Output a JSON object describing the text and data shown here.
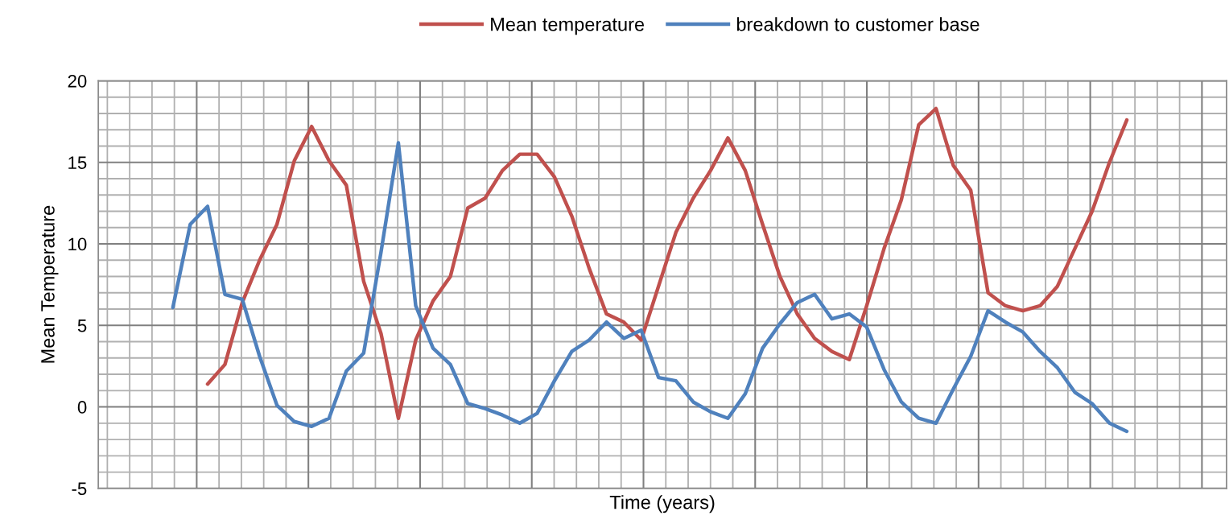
{
  "chart_data": {
    "type": "line",
    "xlabel": "Time (years)",
    "ylabel": "Mean Temperature",
    "categories": [
      null,
      null,
      null,
      null,
      null,
      null,
      null,
      null,
      null,
      null,
      null,
      null,
      null,
      null,
      null,
      null,
      null,
      null,
      null,
      null,
      null,
      null,
      null,
      null,
      null,
      null,
      null,
      null,
      null,
      null,
      null,
      null,
      null,
      null,
      null,
      null,
      null,
      null,
      null,
      null,
      null,
      null,
      null,
      null,
      null,
      null,
      null,
      null,
      null,
      null,
      null,
      null,
      null,
      null,
      null,
      null
    ],
    "series": [
      {
        "name": "Mean temperature",
        "color": "#c0504d",
        "values": [
          null,
          null,
          1.4,
          2.6,
          6.4,
          9.0,
          11.2,
          15.1,
          17.2,
          15.1,
          13.6,
          7.7,
          4.5,
          -0.7,
          4.1,
          6.5,
          8.0,
          12.2,
          12.8,
          14.5,
          15.5,
          15.5,
          14.1,
          11.7,
          8.5,
          5.7,
          5.2,
          4.1,
          7.4,
          10.7,
          12.8,
          14.5,
          16.5,
          14.5,
          11.2,
          8.0,
          5.7,
          4.2,
          3.4,
          2.9,
          6.2,
          9.7,
          12.7,
          17.3,
          18.3,
          14.8,
          13.3,
          7.0,
          6.2,
          5.9,
          6.2,
          7.4,
          9.7,
          12.0,
          15.0,
          17.6
        ]
      },
      {
        "name": "breakdown to customer base",
        "color": "#4f81bd",
        "values": [
          6.1,
          11.2,
          12.3,
          6.9,
          6.6,
          3.1,
          0.1,
          -0.9,
          -1.2,
          -0.7,
          2.2,
          3.3,
          9.5,
          16.2,
          6.2,
          3.6,
          2.6,
          0.2,
          -0.1,
          -0.5,
          -1.0,
          -0.4,
          1.6,
          3.4,
          4.1,
          5.2,
          4.2,
          4.7,
          1.8,
          1.6,
          0.3,
          -0.3,
          -0.7,
          0.8,
          3.6,
          5.1,
          6.4,
          6.9,
          5.4,
          5.7,
          4.9,
          2.3,
          0.3,
          -0.7,
          -1.0,
          1.1,
          3.1,
          5.9,
          5.2,
          4.6,
          3.4,
          2.4,
          0.9,
          0.2,
          -1.0,
          -1.5
        ]
      }
    ],
    "ylim": [
      -5,
      20
    ],
    "yticks": [
      -5,
      0,
      5,
      10,
      15,
      20
    ],
    "grid": true,
    "legend": "top",
    "marker": "none",
    "line_style": "solid",
    "tick_labels": "y"
  }
}
